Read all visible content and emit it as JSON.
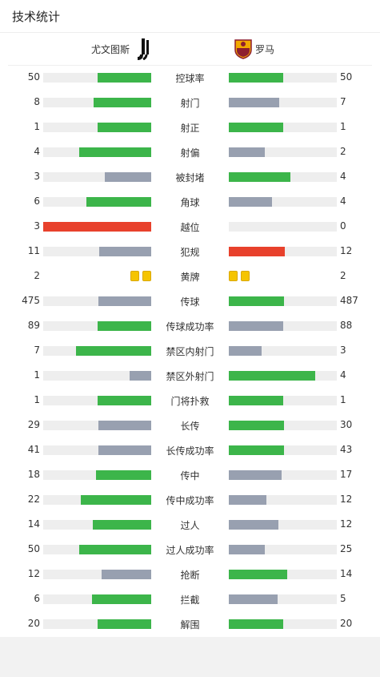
{
  "header": {
    "title": "技术统计"
  },
  "teams": {
    "home": "尤文图斯",
    "away": "罗马"
  },
  "colors": {
    "better": "#3cb54a",
    "worse": "#98a0b0",
    "alert": "#e8412c",
    "track": "#eeeeee",
    "yellow": "#f5c400"
  },
  "stats": [
    {
      "label": "控球率",
      "home": "50",
      "away": "50",
      "home_pct": 50,
      "away_pct": 50,
      "home_color": "better",
      "away_color": "better"
    },
    {
      "label": "射门",
      "home": "8",
      "away": "7",
      "home_pct": 53,
      "away_pct": 47,
      "home_color": "better",
      "away_color": "worse"
    },
    {
      "label": "射正",
      "home": "1",
      "away": "1",
      "home_pct": 50,
      "away_pct": 50,
      "home_color": "better",
      "away_color": "better"
    },
    {
      "label": "射偏",
      "home": "4",
      "away": "2",
      "home_pct": 67,
      "away_pct": 33,
      "home_color": "better",
      "away_color": "worse"
    },
    {
      "label": "被封堵",
      "home": "3",
      "away": "4",
      "home_pct": 43,
      "away_pct": 57,
      "home_color": "worse",
      "away_color": "better"
    },
    {
      "label": "角球",
      "home": "6",
      "away": "4",
      "home_pct": 60,
      "away_pct": 40,
      "home_color": "better",
      "away_color": "worse"
    },
    {
      "label": "越位",
      "home": "3",
      "away": "0",
      "home_pct": 100,
      "away_pct": 0,
      "home_color": "alert",
      "away_color": "worse"
    },
    {
      "label": "犯规",
      "home": "11",
      "away": "12",
      "home_pct": 48,
      "away_pct": 52,
      "home_color": "worse",
      "away_color": "alert"
    },
    {
      "label": "黄牌",
      "home": "2",
      "away": "2",
      "home_cards": 2,
      "away_cards": 2
    },
    {
      "label": "传球",
      "home": "475",
      "away": "487",
      "home_pct": 49,
      "away_pct": 51,
      "home_color": "worse",
      "away_color": "better"
    },
    {
      "label": "传球成功率",
      "home": "89",
      "away": "88",
      "home_pct": 50,
      "away_pct": 50,
      "home_color": "better",
      "away_color": "worse"
    },
    {
      "label": "禁区内射门",
      "home": "7",
      "away": "3",
      "home_pct": 70,
      "away_pct": 30,
      "home_color": "better",
      "away_color": "worse"
    },
    {
      "label": "禁区外射门",
      "home": "1",
      "away": "4",
      "home_pct": 20,
      "away_pct": 80,
      "home_color": "worse",
      "away_color": "better"
    },
    {
      "label": "门将扑救",
      "home": "1",
      "away": "1",
      "home_pct": 50,
      "away_pct": 50,
      "home_color": "better",
      "away_color": "better"
    },
    {
      "label": "长传",
      "home": "29",
      "away": "30",
      "home_pct": 49,
      "away_pct": 51,
      "home_color": "worse",
      "away_color": "better"
    },
    {
      "label": "长传成功率",
      "home": "41",
      "away": "43",
      "home_pct": 49,
      "away_pct": 51,
      "home_color": "worse",
      "away_color": "better"
    },
    {
      "label": "传中",
      "home": "18",
      "away": "17",
      "home_pct": 51,
      "away_pct": 49,
      "home_color": "better",
      "away_color": "worse"
    },
    {
      "label": "传中成功率",
      "home": "22",
      "away": "12",
      "home_pct": 65,
      "away_pct": 35,
      "home_color": "better",
      "away_color": "worse"
    },
    {
      "label": "过人",
      "home": "14",
      "away": "12",
      "home_pct": 54,
      "away_pct": 46,
      "home_color": "better",
      "away_color": "worse"
    },
    {
      "label": "过人成功率",
      "home": "50",
      "away": "25",
      "home_pct": 67,
      "away_pct": 33,
      "home_color": "better",
      "away_color": "worse"
    },
    {
      "label": "抢断",
      "home": "12",
      "away": "14",
      "home_pct": 46,
      "away_pct": 54,
      "home_color": "worse",
      "away_color": "better"
    },
    {
      "label": "拦截",
      "home": "6",
      "away": "5",
      "home_pct": 55,
      "away_pct": 45,
      "home_color": "better",
      "away_color": "worse"
    },
    {
      "label": "解围",
      "home": "20",
      "away": "20",
      "home_pct": 50,
      "away_pct": 50,
      "home_color": "better",
      "away_color": "better"
    }
  ]
}
